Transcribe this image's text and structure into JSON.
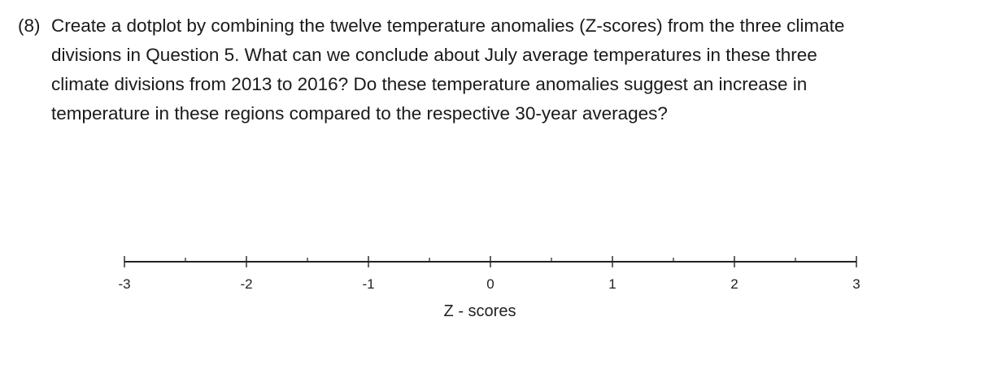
{
  "question": {
    "number": "(8)",
    "text": "Create a dotplot by combining the twelve temperature anomalies (Z-scores) from the three climate\ndivisions in Question 5. What can we conclude about July average temperatures in these three\nclimate divisions from 2013 to 2016? Do these temperature anomalies suggest an increase in\ntemperature in these regions compared to the respective 30-year averages?"
  },
  "chart_data": {
    "type": "scatter",
    "xlabel": "Z - scores",
    "xlim": [
      -3,
      3
    ],
    "major_ticks": [
      -3,
      -2,
      -1,
      0,
      1,
      2,
      3
    ],
    "tick_labels": [
      "-3",
      "-2",
      "-1",
      "0",
      "1",
      "2",
      "3"
    ],
    "minor_ticks": [
      -2.5,
      -1.5,
      -0.5,
      0.5,
      1.5,
      2.5
    ],
    "points": [],
    "colors": {
      "axis": "#222222"
    }
  }
}
